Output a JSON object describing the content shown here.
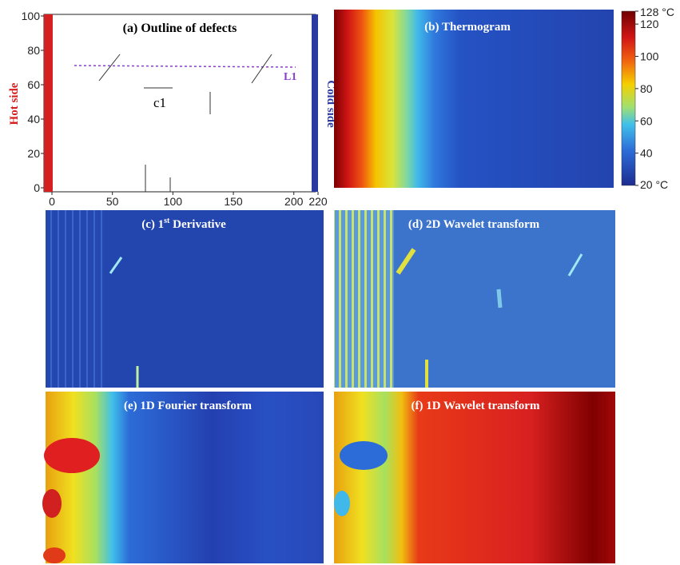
{
  "panel_a": {
    "title": "(a) Outline of defects",
    "hot_label": "Hot side",
    "cold_label": "Cold side",
    "line_label": "L1",
    "defect_label": "c1",
    "xlim": [
      0,
      220
    ],
    "xticks": [
      0,
      50,
      100,
      150,
      200,
      220
    ],
    "ylim": [
      0,
      100
    ],
    "yticks": [
      0,
      20,
      40,
      60,
      80,
      100
    ]
  },
  "panel_b": {
    "title": "(b) Thermogram",
    "colorbar_lim": [
      20,
      128
    ],
    "colorbar_ticks": [
      {
        "value": 128,
        "label": "128 °C"
      },
      120,
      100,
      80,
      60,
      40,
      {
        "value": 20,
        "label": "20 °C"
      }
    ]
  },
  "panel_c": {
    "title_parts": [
      "(c) 1",
      "st",
      " Derivative"
    ]
  },
  "panel_d": {
    "title": "(d) 2D Wavelet transform"
  },
  "panel_e": {
    "title": "(e) 1D Fourier transform"
  },
  "panel_f": {
    "title": "(f) 1D Wavelet transform"
  }
}
